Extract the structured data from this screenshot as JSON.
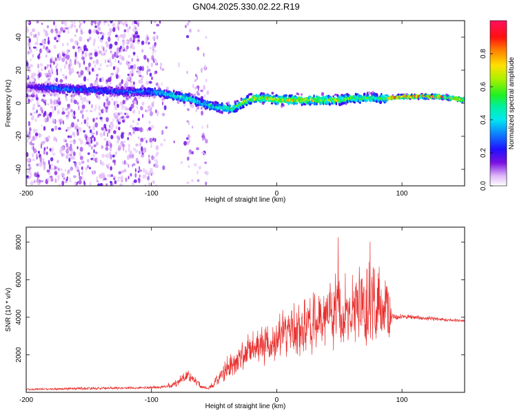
{
  "chart_data": [
    {
      "type": "heatmap",
      "title": "GN04.2025.330.02.22.R19",
      "xlabel": "Height of straight line (km)",
      "ylabel": "Frequency (Hz)",
      "xlim": [
        -200,
        150
      ],
      "ylim": [
        -50,
        50
      ],
      "xticks": [
        -200,
        -100,
        0,
        100
      ],
      "xtick_labels": [
        "-200",
        "-100",
        "0",
        "100"
      ],
      "yticks": [
        -40,
        -20,
        0,
        20,
        40
      ],
      "ytick_labels": [
        "-40",
        "-20",
        "0",
        "20",
        "40"
      ],
      "colorbar": {
        "label": "Normalized spectral amplitude",
        "range": [
          0,
          1
        ],
        "ticks": [
          0.0,
          0.2,
          0.4,
          0.6,
          0.8
        ],
        "tick_labels": [
          "0.0",
          "0.2",
          "0.4",
          "0.6",
          "0.8"
        ]
      },
      "ridge": {
        "x": [
          -200,
          -175,
          -150,
          -125,
          -100,
          -90,
          -80,
          -70,
          -60,
          -50,
          -40,
          -35,
          -30,
          -25,
          -20,
          -10,
          0,
          10,
          20,
          30,
          40,
          50,
          60,
          70,
          80,
          85,
          90,
          100,
          110,
          120,
          130,
          140,
          150
        ],
        "freq": [
          10,
          9,
          8,
          7,
          7,
          6,
          4,
          3,
          0,
          -2,
          -3,
          -3,
          -1,
          1,
          3,
          3,
          2,
          2,
          2,
          2,
          2,
          2,
          3,
          3,
          3,
          3,
          3,
          4,
          4,
          4,
          4,
          3,
          2
        ],
        "amplitude": [
          0.15,
          0.35,
          0.3,
          0.3,
          0.35,
          0.45,
          0.5,
          0.5,
          0.45,
          0.5,
          0.55,
          0.6,
          0.65,
          0.7,
          0.75,
          0.7,
          0.75,
          0.8,
          0.75,
          0.75,
          0.7,
          0.65,
          0.6,
          0.6,
          0.55,
          0.6,
          0.8,
          0.9,
          0.95,
          0.95,
          0.9,
          0.8,
          0.9
        ]
      },
      "noise_extent_km": [
        -200,
        -55
      ]
    },
    {
      "type": "line",
      "title": "",
      "xlabel": "Height of straight line (km)",
      "ylabel": "SNR (10 * v/v)",
      "xlim": [
        -200,
        150
      ],
      "ylim": [
        0,
        8800
      ],
      "xticks": [
        -200,
        -100,
        0,
        100
      ],
      "xtick_labels": [
        "-200",
        "-100",
        "0",
        "100"
      ],
      "yticks": [
        2000,
        4000,
        6000,
        8000
      ],
      "ytick_labels": [
        "2000",
        "4000",
        "6000",
        "8000"
      ],
      "series": [
        {
          "name": "SNR",
          "color": "#e8302e",
          "x": [
            -200,
            -180,
            -160,
            -140,
            -120,
            -100,
            -90,
            -80,
            -75,
            -70,
            -65,
            -60,
            -55,
            -50,
            -45,
            -40,
            -35,
            -30,
            -25,
            -20,
            -10,
            0,
            10,
            20,
            30,
            40,
            50,
            60,
            70,
            75,
            80,
            85,
            90,
            92,
            95,
            100,
            110,
            120,
            130,
            140,
            150
          ],
          "mean": [
            150,
            180,
            200,
            220,
            230,
            250,
            300,
            450,
            800,
            900,
            600,
            300,
            200,
            450,
            900,
            1200,
            1500,
            1800,
            2100,
            2300,
            2500,
            2800,
            3200,
            3500,
            3700,
            4000,
            4200,
            4400,
            4500,
            4600,
            4500,
            4300,
            4200,
            4100,
            4000,
            4050,
            4000,
            3950,
            3900,
            3850,
            3800
          ],
          "noise": [
            60,
            60,
            70,
            70,
            70,
            80,
            100,
            200,
            350,
            400,
            250,
            120,
            80,
            200,
            400,
            600,
            700,
            800,
            900,
            900,
            1000,
            1100,
            1300,
            1500,
            1700,
            1900,
            2000,
            2100,
            2300,
            2400,
            2300,
            2000,
            1700,
            300,
            150,
            120,
            120,
            110,
            110,
            100,
            100
          ]
        }
      ]
    }
  ]
}
